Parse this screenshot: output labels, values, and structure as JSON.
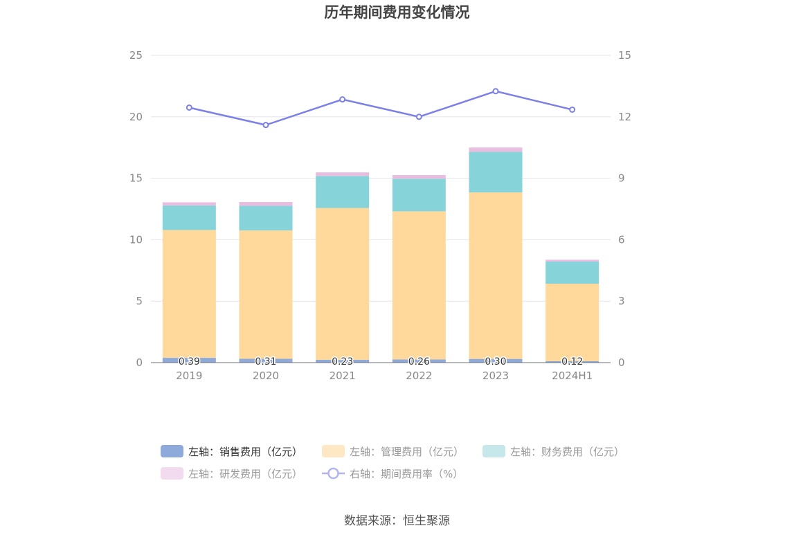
{
  "title": "历年期间费用变化情况",
  "source": "数据来源：恒生聚源",
  "chart_data": {
    "type": "bar",
    "stacked": true,
    "categories": [
      "2019",
      "2020",
      "2021",
      "2022",
      "2023",
      "2024H1"
    ],
    "left_axis": {
      "ylim": [
        0,
        25
      ],
      "ticks": [
        "0",
        "5",
        "10",
        "15",
        "20",
        "25"
      ]
    },
    "right_axis": {
      "ylim": [
        0,
        15
      ],
      "ticks": [
        "0",
        "3",
        "6",
        "9",
        "12",
        "15"
      ]
    },
    "series": [
      {
        "name": "左轴：销售费用（亿元）",
        "type": "bar",
        "axis": "left",
        "color": "#8eaadb",
        "values": [
          0.39,
          0.31,
          0.23,
          0.26,
          0.3,
          0.12
        ],
        "labels": [
          "0.39",
          "0.31",
          "0.23",
          "0.26",
          "0.30",
          "0.12"
        ]
      },
      {
        "name": "左轴：管理费用（亿元）",
        "type": "bar",
        "axis": "left",
        "color": "#fed99b",
        "values": [
          10.4,
          10.45,
          12.35,
          12.05,
          13.55,
          6.3
        ]
      },
      {
        "name": "左轴：财务费用（亿元）",
        "type": "bar",
        "axis": "left",
        "color": "#86d4d9",
        "values": [
          2.0,
          2.0,
          2.6,
          2.65,
          3.3,
          1.8
        ]
      },
      {
        "name": "左轴：研发费用（亿元）",
        "type": "bar",
        "axis": "left",
        "color": "#e8bde0",
        "values": [
          0.25,
          0.3,
          0.3,
          0.3,
          0.35,
          0.15
        ]
      },
      {
        "name": "右轴：期间费用率（%）",
        "type": "line",
        "axis": "right",
        "color": "#7b7fe8",
        "values": [
          12.45,
          11.6,
          12.85,
          12.0,
          13.25,
          12.35
        ]
      }
    ],
    "legend_position": "bottom",
    "grid": true
  }
}
